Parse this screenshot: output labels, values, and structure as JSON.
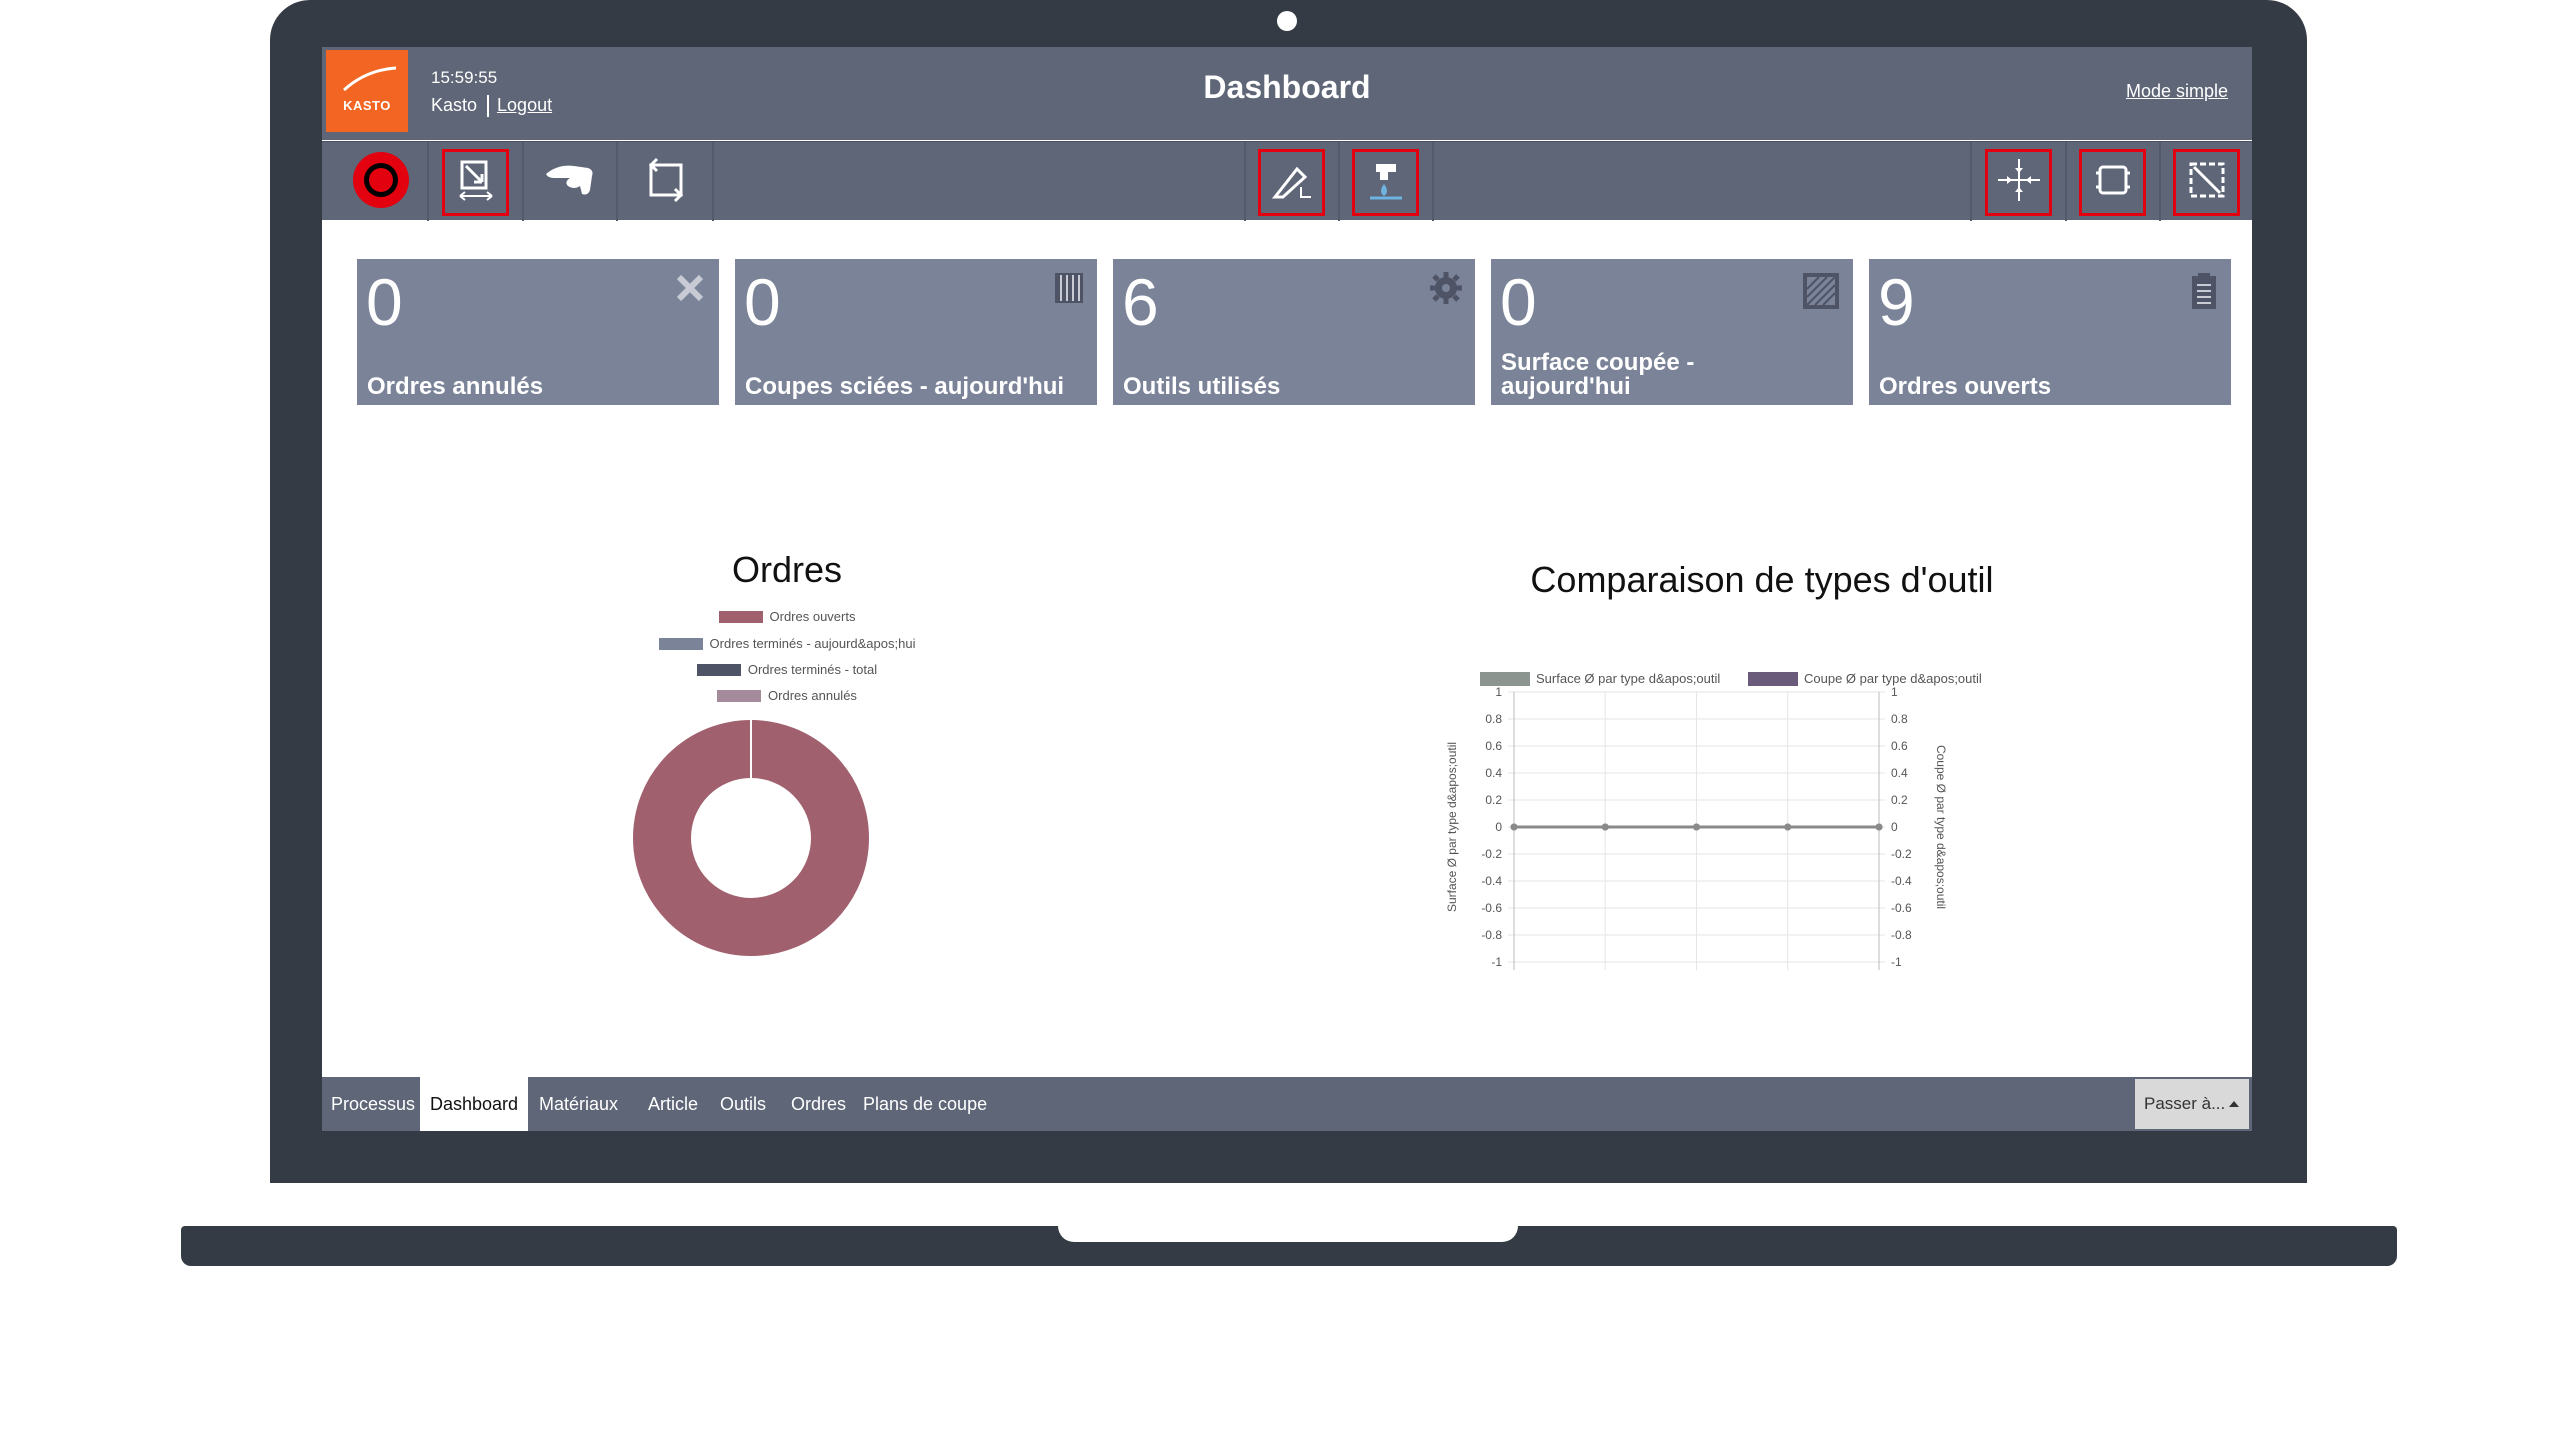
{
  "app": {
    "logo_text": "KASTO",
    "clock": "15:59:55",
    "user": "Kasto",
    "logout_label": "Logout",
    "title": "Dashboard",
    "mode_simple_label": "Mode simple"
  },
  "toolbar": {
    "buttons": [
      {
        "icon": "record-icon"
      },
      {
        "icon": "tool-measure-icon"
      },
      {
        "icon": "hand-icon"
      },
      {
        "icon": "rotate-frame-icon"
      },
      {
        "icon": "cut-angle-icon"
      },
      {
        "icon": "coolant-icon"
      },
      {
        "icon": "center-clamp-icon"
      },
      {
        "icon": "frame-icon"
      },
      {
        "icon": "diagonal-cut-icon"
      }
    ]
  },
  "tiles": [
    {
      "value": "0",
      "label": "Ordres annulés",
      "icon": "cancel-icon"
    },
    {
      "value": "0",
      "label": "Coupes sciées - aujourd'hui",
      "icon": "saw-blade-icon"
    },
    {
      "value": "6",
      "label": "Outils utilisés",
      "icon": "gear-icon"
    },
    {
      "value": "0",
      "label_line1": "Surface coupée -",
      "label_line2": "aujourd'hui",
      "icon": "hatch-icon"
    },
    {
      "value": "9",
      "label": "Ordres ouverts",
      "icon": "clipboard-icon"
    }
  ],
  "chart_data": [
    {
      "type": "pie",
      "title": "Ordres",
      "labels": [
        "Ordres ouverts",
        "Ordres terminés - aujourd&apos;hui",
        "Ordres terminés - total",
        "Ordres annulés"
      ],
      "values": [
        9,
        0,
        0,
        0
      ],
      "colors": [
        "#a0606e",
        "#7b8398",
        "#4e5366",
        "#a58a9b"
      ],
      "donut": true
    },
    {
      "type": "line",
      "title": "Comparaison de types d'outil",
      "series": [
        {
          "name": "Surface Ø par type d&apos;outil",
          "color": "#8c948f",
          "values": [
            0,
            0,
            0,
            0,
            0
          ]
        },
        {
          "name": "Coupe Ø par type d&apos;outil",
          "color": "#6b5b7b",
          "values": [
            0,
            0,
            0,
            0,
            0
          ]
        }
      ],
      "ylabel_left": "Surface Ø par type d&apos;outil",
      "ylabel_right": "Coupe Ø par type d&apos;outil",
      "ylim": [
        -1,
        1
      ],
      "yticks": [
        "1",
        "0.8",
        "0.6",
        "0.4",
        "0.2",
        "0",
        "-0.2",
        "-0.4",
        "-0.6",
        "-0.8",
        "-1"
      ],
      "grid": true,
      "legend": "top"
    }
  ],
  "footer": {
    "tabs": [
      "Processus",
      "Dashboard",
      "Matériaux",
      "Article",
      "Outils",
      "Ordres",
      "Plans de coupe"
    ],
    "active_tab": "Dashboard",
    "goto_label": "Passer à..."
  }
}
